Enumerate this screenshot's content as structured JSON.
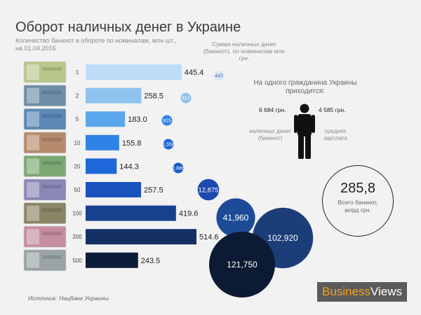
{
  "title": "Оборот наличных денег в Украине",
  "subtitle": "Количество банкнот в обороте по номиналам, млн шт., на 01.04.2016",
  "legend_note": "Сумма наличных денег (банкнот), по номиналам млн грн.",
  "per_citizen": {
    "heading": "На одного гражданина Украины приходится:",
    "cash_value": "6 684 грн.",
    "wage_value": "4 585 грн.",
    "cash_label": "наличных денег (банкнот)",
    "wage_label": "средняя зарплата",
    "icon": "person-icon"
  },
  "total": {
    "value": "285,8",
    "label": "Всего банкнот, млрд грн."
  },
  "source": "Источник: Нацбанк Украины",
  "logo": {
    "part1": "Business",
    "part2": "Views",
    "bg": "#5b5b5b",
    "accent": "#f6a01a"
  },
  "chart_data": {
    "type": "bar",
    "orientation": "horizontal",
    "categories": [
      "1",
      "2",
      "5",
      "10",
      "20",
      "50",
      "100",
      "200",
      "500"
    ],
    "values": [
      445.4,
      258.5,
      183.0,
      155.8,
      144.3,
      257.5,
      419.6,
      514.6,
      243.5
    ],
    "value_labels": [
      "445.4",
      "258.5",
      "183.0",
      "155.8",
      "144.3",
      "257.5",
      "419.6",
      "514.6",
      "243.5"
    ],
    "bubbles": [
      445,
      517,
      915,
      1558,
      2886,
      12875,
      41960,
      102920,
      121750
    ],
    "bubble_labels": [
      "445",
      "517",
      "915",
      "1,558",
      "2,886",
      "12,875",
      "41,960",
      "102,920",
      "121,750"
    ],
    "bar_colors": [
      "#bcdcf7",
      "#8ec3f0",
      "#5aa6ec",
      "#2f83e6",
      "#1e67d8",
      "#1a53bd",
      "#17408f",
      "#143064",
      "#0c1d3a"
    ],
    "bubble_colors": [
      "#dbeaf7",
      "#8ec3f0",
      "#2f83e6",
      "#1e67d8",
      "#1a5ac2",
      "#1c49b0",
      "#1d4a96",
      "#1c3e78",
      "#0c1a33"
    ],
    "banknote_colors": [
      "#b9c78a",
      "#6f8ea6",
      "#5b88b5",
      "#b58a6c",
      "#7ca874",
      "#8a88b6",
      "#8a8565",
      "#c58ea0",
      "#9aa3a6"
    ],
    "xlabel": "",
    "ylabel": ""
  }
}
